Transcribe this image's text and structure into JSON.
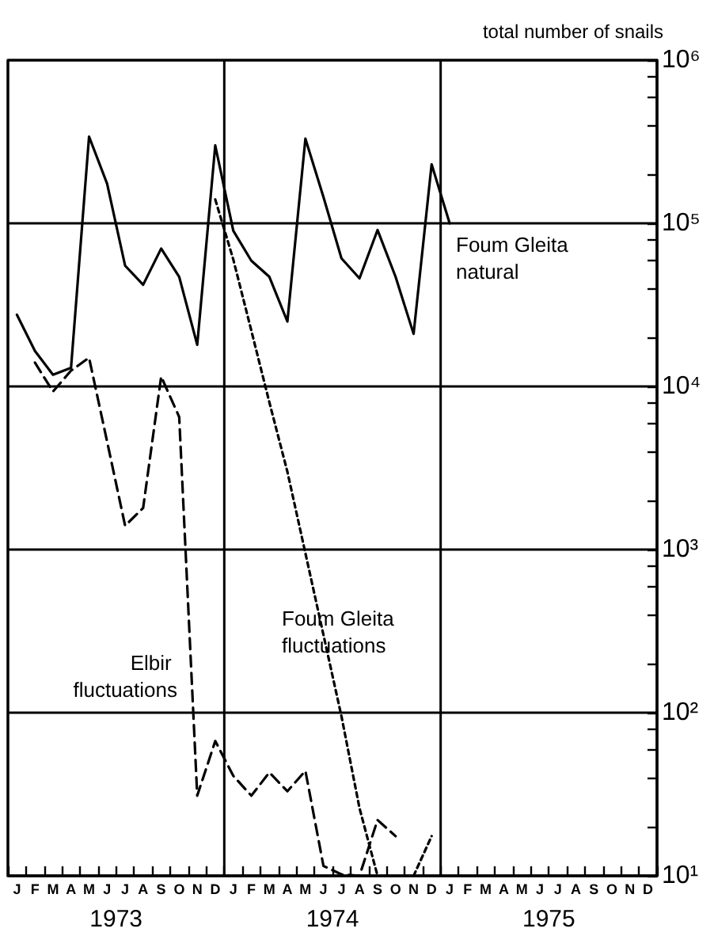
{
  "chart_data": {
    "type": "line",
    "ylabel": "total number of snails",
    "log": "y",
    "ylim": [
      10,
      1000000
    ],
    "yticks": [
      {
        "value": 10,
        "label": "10¹"
      },
      {
        "value": 20,
        "label": null
      },
      {
        "value": 40,
        "label": null
      },
      {
        "value": 60,
        "label": null
      },
      {
        "value": 80,
        "label": null
      },
      {
        "value": 100,
        "label": "10²"
      },
      {
        "value": 200,
        "label": null
      },
      {
        "value": 400,
        "label": null
      },
      {
        "value": 600,
        "label": null
      },
      {
        "value": 800,
        "label": null
      },
      {
        "value": 1000,
        "label": "10³"
      },
      {
        "value": 2000,
        "label": null
      },
      {
        "value": 4000,
        "label": null
      },
      {
        "value": 6000,
        "label": null
      },
      {
        "value": 8000,
        "label": null
      },
      {
        "value": 10000,
        "label": "10⁴"
      },
      {
        "value": 20000,
        "label": null
      },
      {
        "value": 40000,
        "label": null
      },
      {
        "value": 60000,
        "label": null
      },
      {
        "value": 80000,
        "label": null
      },
      {
        "value": 100000,
        "label": "10⁵"
      },
      {
        "value": 200000,
        "label": null
      },
      {
        "value": 400000,
        "label": null
      },
      {
        "value": 600000,
        "label": null
      },
      {
        "value": 800000,
        "label": null
      },
      {
        "value": 1000000,
        "label": "10⁶"
      }
    ],
    "categories": [
      "J",
      "F",
      "M",
      "A",
      "M",
      "J",
      "J",
      "A",
      "S",
      "O",
      "N",
      "D",
      "J",
      "F",
      "M",
      "A",
      "M",
      "J",
      "J",
      "A",
      "S",
      "O",
      "N",
      "D",
      "J",
      "F",
      "M",
      "A",
      "M",
      "J",
      "J",
      "A",
      "S",
      "O",
      "N",
      "D"
    ],
    "x2lim": [
      1973,
      1976
    ],
    "x2ticks": [
      {
        "value": 1973,
        "label": null
      },
      {
        "value": 1974,
        "label": null
      },
      {
        "value": 1975,
        "label": null
      },
      {
        "value": 1976,
        "label": null
      },
      {
        "value": 1973.5,
        "label": "1973"
      },
      {
        "value": 1974.5,
        "label": "1974"
      },
      {
        "value": 1975.5,
        "label": "1975"
      }
    ],
    "grid": true,
    "series": [
      {
        "name": "Foum Gleita natural",
        "color": "#000000",
        "line_style": "solid",
        "values": [
          27500,
          16500,
          11800,
          13000,
          340000,
          175000,
          55000,
          42000,
          70000,
          47000,
          18000,
          300000,
          90000,
          59000,
          47000,
          25000,
          330000,
          145000,
          61000,
          46000,
          91000,
          47000,
          21000,
          230000,
          100000,
          null,
          null,
          null,
          null,
          null,
          null,
          null,
          null,
          null,
          null,
          null
        ]
      },
      {
        "name": "Elbir fluctuations",
        "color": "#000000",
        "line_style": "dashed",
        "values": [
          null,
          14000,
          9300,
          12500,
          15000,
          4600,
          1400,
          1800,
          11500,
          6500,
          31,
          67,
          41,
          31,
          43,
          33,
          44,
          11.5,
          10.2,
          10,
          22,
          17.5,
          null,
          null,
          null,
          null,
          null,
          null,
          null,
          null,
          null,
          null,
          null,
          null,
          null,
          null
        ]
      },
      {
        "name": "Foum Gleita fluctuations",
        "color": "#000000",
        "line_style": "dotted",
        "values": [
          null,
          null,
          null,
          null,
          null,
          null,
          null,
          null,
          null,
          null,
          null,
          140000,
          60000,
          22000,
          8000,
          3000,
          950,
          300,
          95,
          26,
          10,
          null,
          10,
          17.5,
          null,
          null,
          null,
          null,
          null,
          null,
          null,
          null,
          null,
          null,
          null,
          null
        ]
      }
    ]
  }
}
